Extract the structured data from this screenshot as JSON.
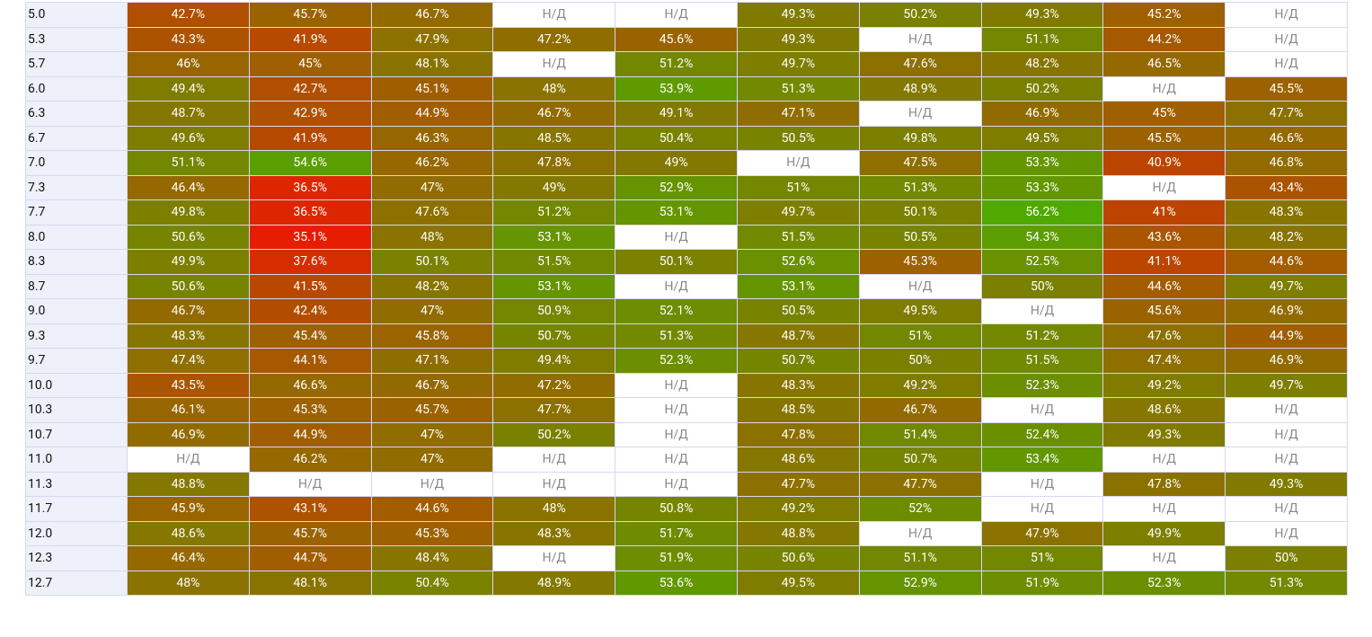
{
  "table": {
    "rows": [
      [
        "5.0",
        "42.7%",
        "45.7%",
        "46.7%",
        "Н/Д",
        "Н/Д",
        "49.3%",
        "50.2%",
        "49.3%",
        "45.2%",
        "Н/Д"
      ],
      [
        "5.3",
        "43.3%",
        "41.9%",
        "47.9%",
        "47.2%",
        "45.6%",
        "49.3%",
        "Н/Д",
        "51.1%",
        "44.2%",
        "Н/Д"
      ],
      [
        "5.7",
        "46%",
        "45%",
        "48.1%",
        "Н/Д",
        "51.2%",
        "49.7%",
        "47.6%",
        "48.2%",
        "46.5%",
        "Н/Д"
      ],
      [
        "6.0",
        "49.4%",
        "42.7%",
        "45.1%",
        "48%",
        "53.9%",
        "51.3%",
        "48.9%",
        "50.2%",
        "Н/Д",
        "45.5%"
      ],
      [
        "6.3",
        "48.7%",
        "42.9%",
        "44.9%",
        "46.7%",
        "49.1%",
        "47.1%",
        "Н/Д",
        "46.9%",
        "45%",
        "47.7%"
      ],
      [
        "6.7",
        "49.6%",
        "41.9%",
        "46.3%",
        "48.5%",
        "50.4%",
        "50.5%",
        "49.8%",
        "49.5%",
        "45.5%",
        "46.6%"
      ],
      [
        "7.0",
        "51.1%",
        "54.6%",
        "46.2%",
        "47.8%",
        "49%",
        "Н/Д",
        "47.5%",
        "53.3%",
        "40.9%",
        "46.8%"
      ],
      [
        "7.3",
        "46.4%",
        "36.5%",
        "47%",
        "49%",
        "52.9%",
        "51%",
        "51.3%",
        "53.3%",
        "Н/Д",
        "43.4%"
      ],
      [
        "7.7",
        "49.8%",
        "36.5%",
        "47.6%",
        "51.2%",
        "53.1%",
        "49.7%",
        "50.1%",
        "56.2%",
        "41%",
        "48.3%"
      ],
      [
        "8.0",
        "50.6%",
        "35.1%",
        "48%",
        "53.1%",
        "Н/Д",
        "51.5%",
        "50.5%",
        "54.3%",
        "43.6%",
        "48.2%"
      ],
      [
        "8.3",
        "49.9%",
        "37.6%",
        "50.1%",
        "51.5%",
        "50.1%",
        "52.6%",
        "45.3%",
        "52.5%",
        "41.1%",
        "44.6%"
      ],
      [
        "8.7",
        "50.6%",
        "41.5%",
        "48.2%",
        "53.1%",
        "Н/Д",
        "53.1%",
        "Н/Д",
        "50%",
        "44.6%",
        "49.7%"
      ],
      [
        "9.0",
        "46.7%",
        "42.4%",
        "47%",
        "50.9%",
        "52.1%",
        "50.5%",
        "49.5%",
        "Н/Д",
        "45.6%",
        "46.9%"
      ],
      [
        "9.3",
        "48.3%",
        "45.4%",
        "45.8%",
        "50.7%",
        "51.3%",
        "48.7%",
        "51%",
        "51.2%",
        "47.6%",
        "44.9%"
      ],
      [
        "9.7",
        "47.4%",
        "44.1%",
        "47.1%",
        "49.4%",
        "52.3%",
        "50.7%",
        "50%",
        "51.5%",
        "47.4%",
        "46.9%"
      ],
      [
        "10.0",
        "43.5%",
        "46.6%",
        "46.7%",
        "47.2%",
        "Н/Д",
        "48.3%",
        "49.2%",
        "52.3%",
        "49.2%",
        "49.7%"
      ],
      [
        "10.3",
        "46.1%",
        "45.3%",
        "45.7%",
        "47.7%",
        "Н/Д",
        "48.5%",
        "46.7%",
        "Н/Д",
        "48.6%",
        "Н/Д"
      ],
      [
        "10.7",
        "46.9%",
        "44.9%",
        "47%",
        "50.2%",
        "Н/Д",
        "47.8%",
        "51.4%",
        "52.4%",
        "49.3%",
        "Н/Д"
      ],
      [
        "11.0",
        "Н/Д",
        "46.2%",
        "47%",
        "Н/Д",
        "Н/Д",
        "48.6%",
        "50.7%",
        "53.4%",
        "Н/Д",
        "Н/Д"
      ],
      [
        "11.3",
        "48.8%",
        "Н/Д",
        "Н/Д",
        "Н/Д",
        "Н/Д",
        "47.7%",
        "47.7%",
        "Н/Д",
        "47.8%",
        "49.3%"
      ],
      [
        "11.7",
        "45.9%",
        "43.1%",
        "44.6%",
        "48%",
        "50.8%",
        "49.2%",
        "52%",
        "Н/Д",
        "Н/Д",
        "Н/Д"
      ],
      [
        "12.0",
        "48.6%",
        "45.7%",
        "45.3%",
        "48.3%",
        "51.7%",
        "48.8%",
        "Н/Д",
        "47.9%",
        "49.9%",
        "Н/Д"
      ],
      [
        "12.3",
        "46.4%",
        "44.7%",
        "48.4%",
        "Н/Д",
        "51.9%",
        "50.6%",
        "51.1%",
        "51%",
        "Н/Д",
        "50%"
      ],
      [
        "12.7",
        "48%",
        "48.1%",
        "50.4%",
        "48.9%",
        "53.6%",
        "49.5%",
        "52.9%",
        "51.9%",
        "52.3%",
        "51.3%"
      ]
    ]
  }
}
